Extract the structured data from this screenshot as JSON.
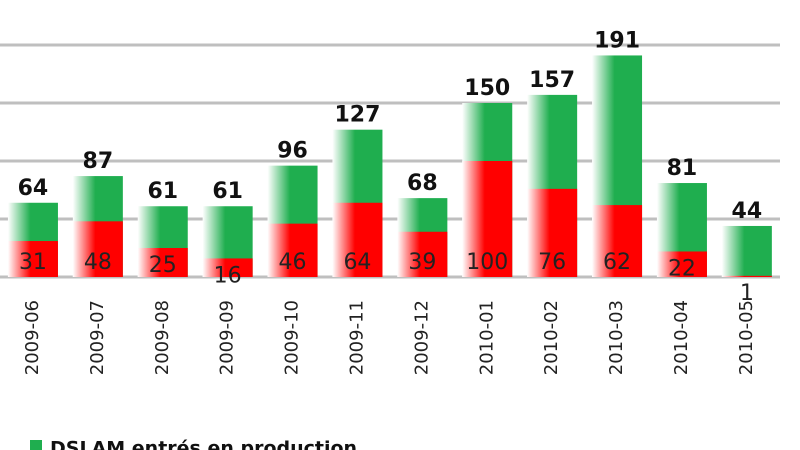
{
  "chart_data": {
    "type": "bar",
    "categories": [
      "2009-06",
      "2009-07",
      "2009-08",
      "2009-09",
      "2009-10",
      "2009-11",
      "2009-12",
      "2010-01",
      "2010-02",
      "2010-03",
      "2010-04",
      "2010-05"
    ],
    "series": [
      {
        "name": "DSLAM entrés en production",
        "color": "#1fae4f",
        "values": [
          64,
          87,
          61,
          61,
          96,
          127,
          68,
          150,
          157,
          191,
          81,
          44
        ]
      },
      {
        "color": "#ff0000",
        "values": [
          31,
          48,
          25,
          16,
          46,
          64,
          39,
          100,
          76,
          62,
          22,
          1
        ]
      }
    ],
    "ylim": [
      0,
      200
    ],
    "yticks": [
      0,
      50,
      100,
      150,
      200
    ],
    "grid": true
  }
}
